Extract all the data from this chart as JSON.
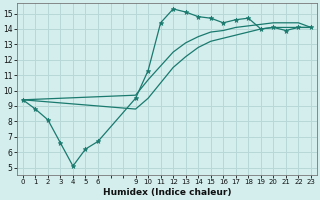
{
  "xlabel": "Humidex (Indice chaleur)",
  "bg_color": "#d4eeee",
  "grid_color": "#b8d8d8",
  "line_color": "#1a7a6e",
  "xlim": [
    -0.5,
    23.5
  ],
  "ylim": [
    4.5,
    15.7
  ],
  "xticks": [
    0,
    1,
    2,
    3,
    4,
    5,
    6,
    9,
    10,
    11,
    12,
    13,
    14,
    15,
    16,
    17,
    18,
    19,
    20,
    21,
    22,
    23
  ],
  "yticks": [
    5,
    6,
    7,
    8,
    9,
    10,
    11,
    12,
    13,
    14,
    15
  ],
  "line1_x": [
    0,
    1,
    2,
    3,
    4,
    5,
    6,
    9,
    10,
    11,
    12,
    13,
    14,
    15,
    16,
    17,
    18,
    19,
    20,
    21,
    22,
    23
  ],
  "line1_y": [
    9.4,
    8.8,
    8.1,
    6.6,
    5.1,
    6.2,
    6.7,
    9.5,
    11.3,
    14.4,
    15.3,
    15.1,
    14.8,
    14.7,
    14.4,
    14.6,
    14.7,
    14.0,
    14.1,
    13.9,
    14.1,
    14.1
  ],
  "line2_x": [
    0,
    9,
    10,
    11,
    12,
    13,
    14,
    15,
    16,
    17,
    18,
    19,
    20,
    21,
    22,
    23
  ],
  "line2_y": [
    9.4,
    9.7,
    10.7,
    11.6,
    12.5,
    13.1,
    13.5,
    13.8,
    13.9,
    14.1,
    14.2,
    14.3,
    14.4,
    14.4,
    14.4,
    14.1
  ],
  "line3_x": [
    0,
    9,
    10,
    11,
    12,
    13,
    14,
    15,
    16,
    17,
    18,
    19,
    20,
    21,
    22,
    23
  ],
  "line3_y": [
    9.4,
    8.8,
    9.5,
    10.5,
    11.5,
    12.2,
    12.8,
    13.2,
    13.4,
    13.6,
    13.8,
    14.0,
    14.1,
    14.1,
    14.1,
    14.1
  ]
}
